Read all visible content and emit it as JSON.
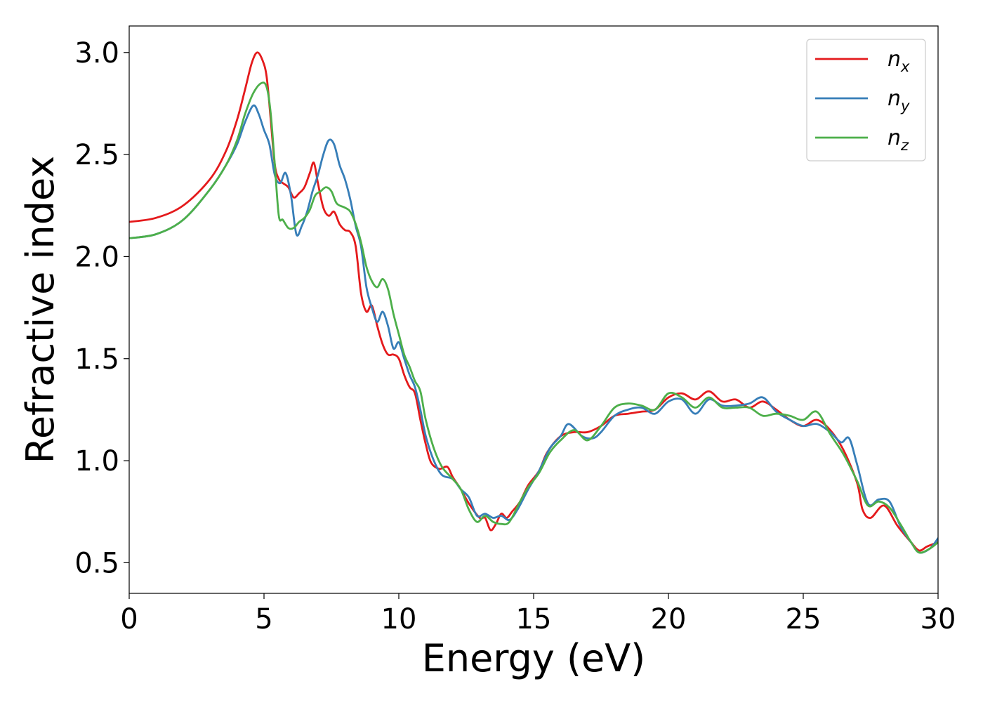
{
  "chart_data": {
    "type": "line",
    "title": "",
    "xlabel": "Energy (eV)",
    "ylabel": "Refractive index",
    "xlim": [
      0,
      30
    ],
    "ylim": [
      0.35,
      3.13
    ],
    "xticks": [
      0,
      5,
      10,
      15,
      20,
      25,
      30
    ],
    "xtick_labels": [
      "0",
      "5",
      "10",
      "15",
      "20",
      "25",
      "30"
    ],
    "yticks": [
      0.5,
      1.0,
      1.5,
      2.0,
      2.5,
      3.0
    ],
    "ytick_labels": [
      "0.5",
      "1.0",
      "1.5",
      "2.0",
      "2.5",
      "3.0"
    ],
    "grid": false,
    "legend_position": "top-right",
    "series": [
      {
        "name": "n_x",
        "label_base": "n",
        "label_sub": "x",
        "color": "#e41a1c",
        "points": [
          [
            0,
            2.17
          ],
          [
            1,
            2.19
          ],
          [
            2,
            2.25
          ],
          [
            3,
            2.38
          ],
          [
            3.6,
            2.52
          ],
          [
            4,
            2.67
          ],
          [
            4.3,
            2.82
          ],
          [
            4.55,
            2.95
          ],
          [
            4.75,
            3.0
          ],
          [
            4.95,
            2.96
          ],
          [
            5.1,
            2.88
          ],
          [
            5.25,
            2.67
          ],
          [
            5.4,
            2.45
          ],
          [
            5.55,
            2.38
          ],
          [
            5.7,
            2.36
          ],
          [
            5.9,
            2.34
          ],
          [
            6.1,
            2.29
          ],
          [
            6.3,
            2.31
          ],
          [
            6.5,
            2.34
          ],
          [
            6.7,
            2.41
          ],
          [
            6.85,
            2.46
          ],
          [
            7.0,
            2.36
          ],
          [
            7.2,
            2.24
          ],
          [
            7.4,
            2.2
          ],
          [
            7.6,
            2.22
          ],
          [
            7.8,
            2.16
          ],
          [
            8.0,
            2.13
          ],
          [
            8.2,
            2.12
          ],
          [
            8.4,
            2.05
          ],
          [
            8.6,
            1.82
          ],
          [
            8.8,
            1.73
          ],
          [
            9.0,
            1.76
          ],
          [
            9.2,
            1.66
          ],
          [
            9.4,
            1.57
          ],
          [
            9.6,
            1.52
          ],
          [
            9.8,
            1.52
          ],
          [
            10.0,
            1.5
          ],
          [
            10.2,
            1.42
          ],
          [
            10.4,
            1.36
          ],
          [
            10.6,
            1.33
          ],
          [
            10.8,
            1.2
          ],
          [
            11.0,
            1.08
          ],
          [
            11.2,
            0.99
          ],
          [
            11.5,
            0.96
          ],
          [
            11.8,
            0.97
          ],
          [
            12.0,
            0.92
          ],
          [
            12.3,
            0.86
          ],
          [
            12.6,
            0.79
          ],
          [
            13.0,
            0.72
          ],
          [
            13.2,
            0.72
          ],
          [
            13.4,
            0.66
          ],
          [
            13.6,
            0.69
          ],
          [
            13.8,
            0.74
          ],
          [
            14.0,
            0.72
          ],
          [
            14.2,
            0.75
          ],
          [
            14.5,
            0.8
          ],
          [
            14.8,
            0.88
          ],
          [
            15.2,
            0.95
          ],
          [
            15.5,
            1.04
          ],
          [
            16,
            1.12
          ],
          [
            16.5,
            1.14
          ],
          [
            17,
            1.14
          ],
          [
            17.5,
            1.17
          ],
          [
            18,
            1.22
          ],
          [
            18.5,
            1.23
          ],
          [
            19,
            1.24
          ],
          [
            19.5,
            1.25
          ],
          [
            20,
            1.31
          ],
          [
            20.5,
            1.33
          ],
          [
            21,
            1.3
          ],
          [
            21.5,
            1.34
          ],
          [
            22,
            1.29
          ],
          [
            22.5,
            1.3
          ],
          [
            23,
            1.26
          ],
          [
            23.5,
            1.29
          ],
          [
            24,
            1.25
          ],
          [
            24.5,
            1.2
          ],
          [
            25,
            1.17
          ],
          [
            25.5,
            1.2
          ],
          [
            26,
            1.15
          ],
          [
            26.5,
            1.05
          ],
          [
            27,
            0.89
          ],
          [
            27.2,
            0.76
          ],
          [
            27.5,
            0.72
          ],
          [
            28,
            0.78
          ],
          [
            28.5,
            0.68
          ],
          [
            29,
            0.6
          ],
          [
            29.3,
            0.56
          ],
          [
            29.6,
            0.58
          ],
          [
            30,
            0.6
          ]
        ]
      },
      {
        "name": "n_y",
        "label_base": "n",
        "label_sub": "y",
        "color": "#377eb8",
        "points": [
          [
            0,
            2.09
          ],
          [
            1,
            2.11
          ],
          [
            2,
            2.18
          ],
          [
            3,
            2.33
          ],
          [
            3.6,
            2.45
          ],
          [
            4,
            2.55
          ],
          [
            4.3,
            2.66
          ],
          [
            4.6,
            2.74
          ],
          [
            4.8,
            2.7
          ],
          [
            5.0,
            2.62
          ],
          [
            5.2,
            2.55
          ],
          [
            5.4,
            2.4
          ],
          [
            5.6,
            2.36
          ],
          [
            5.8,
            2.41
          ],
          [
            6.0,
            2.3
          ],
          [
            6.2,
            2.11
          ],
          [
            6.4,
            2.15
          ],
          [
            6.6,
            2.22
          ],
          [
            6.8,
            2.32
          ],
          [
            7.0,
            2.4
          ],
          [
            7.2,
            2.5
          ],
          [
            7.4,
            2.57
          ],
          [
            7.6,
            2.55
          ],
          [
            7.8,
            2.45
          ],
          [
            8.0,
            2.38
          ],
          [
            8.2,
            2.28
          ],
          [
            8.4,
            2.15
          ],
          [
            8.6,
            2.05
          ],
          [
            8.8,
            1.85
          ],
          [
            9.0,
            1.75
          ],
          [
            9.2,
            1.68
          ],
          [
            9.4,
            1.73
          ],
          [
            9.6,
            1.66
          ],
          [
            9.8,
            1.55
          ],
          [
            10.0,
            1.58
          ],
          [
            10.2,
            1.5
          ],
          [
            10.4,
            1.42
          ],
          [
            10.6,
            1.36
          ],
          [
            10.8,
            1.25
          ],
          [
            11.0,
            1.12
          ],
          [
            11.3,
            1.0
          ],
          [
            11.6,
            0.93
          ],
          [
            12.0,
            0.91
          ],
          [
            12.3,
            0.86
          ],
          [
            12.6,
            0.82
          ],
          [
            12.9,
            0.73
          ],
          [
            13.2,
            0.74
          ],
          [
            13.5,
            0.72
          ],
          [
            13.8,
            0.73
          ],
          [
            14.1,
            0.71
          ],
          [
            14.4,
            0.76
          ],
          [
            14.8,
            0.86
          ],
          [
            15.2,
            0.95
          ],
          [
            15.6,
            1.06
          ],
          [
            16,
            1.12
          ],
          [
            16.3,
            1.18
          ],
          [
            16.8,
            1.12
          ],
          [
            17.2,
            1.11
          ],
          [
            17.5,
            1.14
          ],
          [
            18,
            1.22
          ],
          [
            18.5,
            1.25
          ],
          [
            19,
            1.26
          ],
          [
            19.5,
            1.23
          ],
          [
            20,
            1.29
          ],
          [
            20.5,
            1.3
          ],
          [
            21,
            1.23
          ],
          [
            21.5,
            1.3
          ],
          [
            22,
            1.27
          ],
          [
            22.5,
            1.27
          ],
          [
            23,
            1.28
          ],
          [
            23.5,
            1.31
          ],
          [
            24,
            1.24
          ],
          [
            24.5,
            1.2
          ],
          [
            25,
            1.17
          ],
          [
            25.5,
            1.18
          ],
          [
            26,
            1.14
          ],
          [
            26.4,
            1.09
          ],
          [
            26.7,
            1.11
          ],
          [
            27,
            0.98
          ],
          [
            27.4,
            0.79
          ],
          [
            27.8,
            0.81
          ],
          [
            28.2,
            0.8
          ],
          [
            28.6,
            0.68
          ],
          [
            29,
            0.6
          ],
          [
            29.3,
            0.55
          ],
          [
            29.7,
            0.57
          ],
          [
            30,
            0.62
          ]
        ]
      },
      {
        "name": "n_z",
        "label_base": "n",
        "label_sub": "z",
        "color": "#4daf4a",
        "points": [
          [
            0,
            2.09
          ],
          [
            1,
            2.11
          ],
          [
            2,
            2.18
          ],
          [
            3,
            2.33
          ],
          [
            3.6,
            2.45
          ],
          [
            4,
            2.57
          ],
          [
            4.3,
            2.7
          ],
          [
            4.6,
            2.8
          ],
          [
            4.9,
            2.85
          ],
          [
            5.1,
            2.83
          ],
          [
            5.25,
            2.7
          ],
          [
            5.4,
            2.45
          ],
          [
            5.55,
            2.2
          ],
          [
            5.7,
            2.18
          ],
          [
            5.9,
            2.14
          ],
          [
            6.1,
            2.14
          ],
          [
            6.3,
            2.17
          ],
          [
            6.5,
            2.19
          ],
          [
            6.7,
            2.23
          ],
          [
            6.9,
            2.3
          ],
          [
            7.1,
            2.32
          ],
          [
            7.3,
            2.34
          ],
          [
            7.5,
            2.32
          ],
          [
            7.7,
            2.26
          ],
          [
            8.0,
            2.24
          ],
          [
            8.2,
            2.22
          ],
          [
            8.4,
            2.16
          ],
          [
            8.6,
            2.07
          ],
          [
            8.8,
            1.95
          ],
          [
            9.0,
            1.88
          ],
          [
            9.2,
            1.85
          ],
          [
            9.4,
            1.89
          ],
          [
            9.6,
            1.84
          ],
          [
            9.8,
            1.72
          ],
          [
            10.0,
            1.62
          ],
          [
            10.2,
            1.52
          ],
          [
            10.4,
            1.46
          ],
          [
            10.6,
            1.39
          ],
          [
            10.8,
            1.34
          ],
          [
            11.0,
            1.2
          ],
          [
            11.3,
            1.06
          ],
          [
            11.6,
            0.97
          ],
          [
            12.0,
            0.91
          ],
          [
            12.3,
            0.86
          ],
          [
            12.6,
            0.76
          ],
          [
            12.9,
            0.7
          ],
          [
            13.2,
            0.73
          ],
          [
            13.5,
            0.7
          ],
          [
            13.8,
            0.69
          ],
          [
            14.1,
            0.7
          ],
          [
            14.5,
            0.8
          ],
          [
            14.8,
            0.87
          ],
          [
            15.2,
            0.94
          ],
          [
            15.6,
            1.04
          ],
          [
            16,
            1.1
          ],
          [
            16.5,
            1.15
          ],
          [
            17,
            1.1
          ],
          [
            17.5,
            1.17
          ],
          [
            18,
            1.26
          ],
          [
            18.5,
            1.28
          ],
          [
            19,
            1.27
          ],
          [
            19.5,
            1.25
          ],
          [
            20,
            1.33
          ],
          [
            20.5,
            1.31
          ],
          [
            21,
            1.26
          ],
          [
            21.5,
            1.31
          ],
          [
            22,
            1.26
          ],
          [
            22.5,
            1.26
          ],
          [
            23,
            1.26
          ],
          [
            23.5,
            1.22
          ],
          [
            24,
            1.23
          ],
          [
            24.5,
            1.22
          ],
          [
            25,
            1.2
          ],
          [
            25.5,
            1.24
          ],
          [
            26,
            1.13
          ],
          [
            26.5,
            1.03
          ],
          [
            27,
            0.9
          ],
          [
            27.4,
            0.78
          ],
          [
            27.8,
            0.8
          ],
          [
            28.2,
            0.77
          ],
          [
            28.6,
            0.69
          ],
          [
            29,
            0.6
          ],
          [
            29.3,
            0.55
          ],
          [
            29.7,
            0.57
          ],
          [
            30,
            0.6
          ]
        ]
      }
    ]
  }
}
